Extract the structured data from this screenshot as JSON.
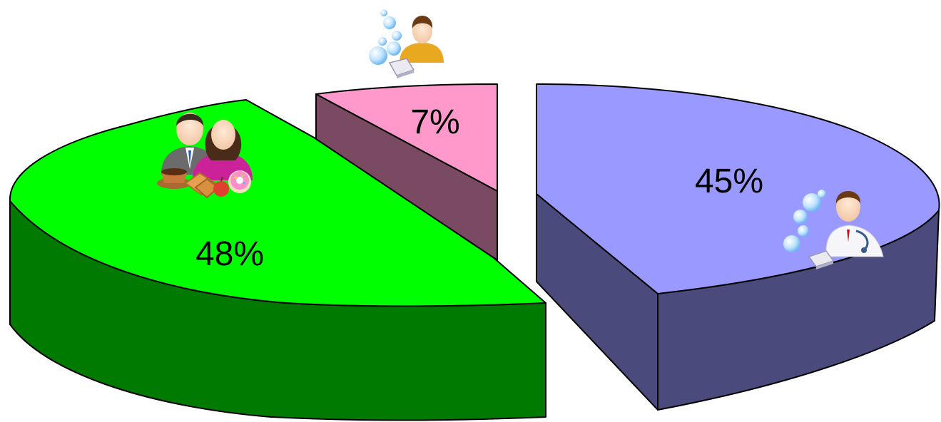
{
  "chart_data": {
    "type": "pie",
    "style": "3d-exploded",
    "slices": [
      {
        "value": 48,
        "label": "48%",
        "top_color": "#00ff00",
        "side_color": "#007a00",
        "icon": "couple-with-snacks-icon"
      },
      {
        "value": 7,
        "label": "7%",
        "top_color": "#ff99cc",
        "side_color": "#7a4a63",
        "icon": "person-with-bubbles-icon"
      },
      {
        "value": 45,
        "label": "45%",
        "top_color": "#9999ff",
        "side_color": "#4a4a7c",
        "icon": "doctor-with-bubbles-icon"
      }
    ]
  }
}
